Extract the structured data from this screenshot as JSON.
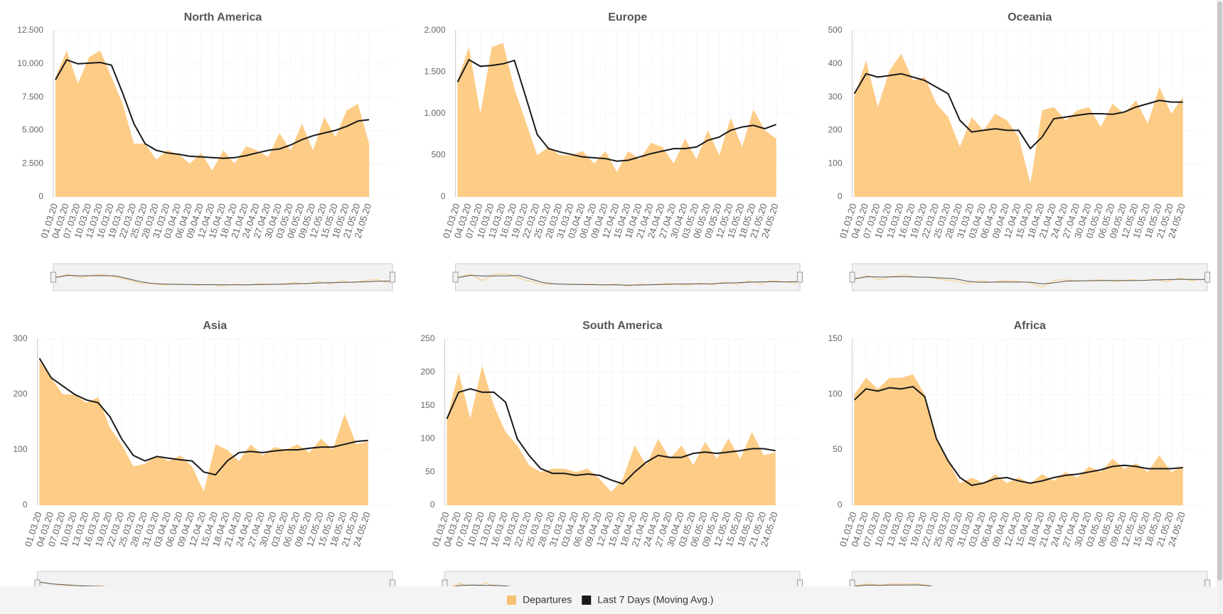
{
  "chart_data": [
    {
      "type": "area-line",
      "title": "North America",
      "categories": [
        "01.03.20",
        "04.03.20",
        "07.03.20",
        "10.03.20",
        "13.03.20",
        "16.03.20",
        "19.03.20",
        "22.03.20",
        "25.03.20",
        "28.03.20",
        "31.03.20",
        "03.04.20",
        "06.04.20",
        "09.04.20",
        "12.04.20",
        "15.04.20",
        "18.04.20",
        "21.04.20",
        "24.04.20",
        "27.04.20",
        "30.04.20",
        "03.05.20",
        "06.05.20",
        "09.05.20",
        "12.05.20",
        "15.05.20",
        "18.05.20",
        "21.05.20",
        "24.05.20"
      ],
      "series": [
        {
          "name": "Departures",
          "color": "#fdc97f",
          "values": [
            9000,
            11000,
            8500,
            10500,
            11000,
            9000,
            7000,
            4000,
            4000,
            2800,
            3500,
            3200,
            2500,
            3300,
            2000,
            3500,
            2500,
            3800,
            3500,
            3000,
            4800,
            3500,
            5500,
            3500,
            6000,
            4500,
            6500,
            7000,
            4000
          ]
        },
        {
          "name": "Last 7 Days (Moving Avg.)",
          "color": "#1a1a1a",
          "values": [
            8800,
            10300,
            10000,
            10050,
            10100,
            9900,
            7800,
            5500,
            4000,
            3500,
            3300,
            3200,
            3050,
            3000,
            2950,
            2900,
            2950,
            3100,
            3300,
            3500,
            3600,
            3900,
            4300,
            4600,
            4800,
            5000,
            5300,
            5700,
            5800
          ]
        }
      ],
      "ylim": [
        0,
        12500
      ],
      "yticks": [
        0,
        {
          "value": 2500,
          "label": "2.500"
        },
        {
          "value": 5000,
          "label": "5.000"
        },
        {
          "value": 7500,
          "label": "7.500"
        },
        {
          "value": 10000,
          "label": "10.000"
        },
        {
          "value": 12500,
          "label": "12.500"
        }
      ],
      "grid": true
    },
    {
      "type": "area-line",
      "title": "Europe",
      "categories": [
        "01.03.20",
        "04.03.20",
        "07.03.20",
        "10.03.20",
        "13.03.20",
        "16.03.20",
        "19.03.20",
        "22.03.20",
        "25.03.20",
        "28.03.20",
        "31.03.20",
        "03.04.20",
        "06.04.20",
        "09.04.20",
        "12.04.20",
        "15.04.20",
        "18.04.20",
        "21.04.20",
        "24.04.20",
        "27.04.20",
        "30.04.20",
        "03.05.20",
        "06.05.20",
        "09.05.20",
        "12.05.20",
        "15.05.20",
        "18.05.20",
        "21.05.20",
        "24.05.20"
      ],
      "series": [
        {
          "name": "Departures",
          "color": "#fdc97f",
          "values": [
            1400,
            1800,
            1000,
            1800,
            1850,
            1300,
            900,
            500,
            600,
            500,
            500,
            550,
            400,
            550,
            300,
            550,
            450,
            650,
            600,
            400,
            700,
            450,
            800,
            500,
            950,
            600,
            1050,
            800,
            700
          ]
        },
        {
          "name": "Last 7 Days (Moving Avg.)",
          "color": "#1a1a1a",
          "values": [
            1380,
            1650,
            1570,
            1580,
            1600,
            1640,
            1200,
            750,
            580,
            540,
            510,
            480,
            470,
            460,
            430,
            440,
            480,
            520,
            550,
            580,
            580,
            600,
            680,
            720,
            800,
            840,
            860,
            820,
            870
          ]
        }
      ],
      "ylim": [
        0,
        2000
      ],
      "yticks": [
        0,
        500,
        {
          "value": 1000,
          "label": "1.000"
        },
        {
          "value": 1500,
          "label": "1.500"
        },
        {
          "value": 2000,
          "label": "2.000"
        }
      ],
      "grid": true
    },
    {
      "type": "area-line",
      "title": "Oceania",
      "categories": [
        "01.03.20",
        "04.03.20",
        "07.03.20",
        "10.03.20",
        "13.03.20",
        "16.03.20",
        "19.03.20",
        "22.03.20",
        "25.03.20",
        "28.03.20",
        "31.03.20",
        "03.04.20",
        "06.04.20",
        "09.04.20",
        "12.04.20",
        "15.04.20",
        "18.04.20",
        "21.04.20",
        "24.04.20",
        "27.04.20",
        "30.04.20",
        "03.05.20",
        "06.05.20",
        "09.05.20",
        "12.05.20",
        "15.05.20",
        "18.05.20",
        "21.05.20",
        "24.05.20"
      ],
      "series": [
        {
          "name": "Departures",
          "color": "#fdc97f",
          "values": [
            300,
            410,
            270,
            380,
            430,
            350,
            360,
            280,
            240,
            150,
            240,
            200,
            250,
            230,
            180,
            40,
            260,
            270,
            230,
            260,
            270,
            210,
            280,
            250,
            290,
            220,
            330,
            250,
            300
          ]
        },
        {
          "name": "Last 7 Days (Moving Avg.)",
          "color": "#1a1a1a",
          "values": [
            310,
            370,
            360,
            365,
            370,
            360,
            350,
            330,
            310,
            230,
            195,
            200,
            205,
            200,
            200,
            145,
            180,
            235,
            240,
            245,
            250,
            250,
            248,
            255,
            270,
            280,
            290,
            285,
            285
          ]
        }
      ],
      "ylim": [
        0,
        500
      ],
      "yticks": [
        0,
        100,
        200,
        300,
        400,
        500
      ],
      "grid": true
    },
    {
      "type": "area-line",
      "title": "Asia",
      "categories": [
        "01.03.20",
        "04.03.20",
        "07.03.20",
        "10.03.20",
        "13.03.20",
        "16.03.20",
        "19.03.20",
        "22.03.20",
        "25.03.20",
        "28.03.20",
        "31.03.20",
        "03.04.20",
        "06.04.20",
        "09.04.20",
        "12.04.20",
        "15.04.20",
        "18.04.20",
        "21.04.20",
        "24.04.20",
        "27.04.20",
        "30.04.20",
        "03.05.20",
        "06.05.20",
        "09.05.20",
        "12.05.20",
        "15.05.20",
        "18.05.20",
        "21.05.20",
        "24.05.20"
      ],
      "series": [
        {
          "name": "Departures",
          "color": "#fdc97f",
          "values": [
            260,
            230,
            200,
            200,
            185,
            195,
            140,
            110,
            70,
            75,
            90,
            80,
            90,
            70,
            25,
            110,
            100,
            80,
            110,
            90,
            105,
            100,
            110,
            95,
            120,
            100,
            165,
            110,
            115
          ]
        },
        {
          "name": "Last 7 Days (Moving Avg.)",
          "color": "#1a1a1a",
          "values": [
            265,
            230,
            215,
            200,
            190,
            185,
            160,
            120,
            90,
            80,
            88,
            85,
            82,
            80,
            60,
            55,
            80,
            95,
            97,
            95,
            98,
            100,
            100,
            103,
            105,
            105,
            110,
            115,
            117
          ]
        }
      ],
      "ylim": [
        0,
        300
      ],
      "yticks": [
        0,
        100,
        200,
        300
      ],
      "grid": true
    },
    {
      "type": "area-line",
      "title": "South America",
      "categories": [
        "01.03.20",
        "04.03.20",
        "07.03.20",
        "10.03.20",
        "13.03.20",
        "16.03.20",
        "19.03.20",
        "22.03.20",
        "25.03.20",
        "28.03.20",
        "31.03.20",
        "03.04.20",
        "06.04.20",
        "09.04.20",
        "12.04.20",
        "15.04.20",
        "18.04.20",
        "21.04.20",
        "24.04.20",
        "27.04.20",
        "30.04.20",
        "03.05.20",
        "06.05.20",
        "09.05.20",
        "12.05.20",
        "15.05.20",
        "18.05.20",
        "21.05.20",
        "24.05.20"
      ],
      "series": [
        {
          "name": "Departures",
          "color": "#fdc97f",
          "values": [
            130,
            200,
            130,
            210,
            150,
            110,
            90,
            60,
            50,
            55,
            55,
            50,
            55,
            40,
            20,
            40,
            90,
            60,
            100,
            70,
            90,
            60,
            95,
            70,
            100,
            70,
            110,
            75,
            80
          ]
        },
        {
          "name": "Last 7 Days (Moving Avg.)",
          "color": "#1a1a1a",
          "values": [
            130,
            170,
            175,
            170,
            170,
            155,
            100,
            75,
            55,
            48,
            48,
            45,
            47,
            45,
            38,
            32,
            50,
            65,
            75,
            72,
            72,
            78,
            80,
            78,
            80,
            82,
            85,
            85,
            82
          ]
        }
      ],
      "ylim": [
        0,
        250
      ],
      "yticks": [
        0,
        50,
        100,
        150,
        200,
        250
      ],
      "grid": true
    },
    {
      "type": "area-line",
      "title": "Africa",
      "categories": [
        "01.03.20",
        "04.03.20",
        "07.03.20",
        "10.03.20",
        "13.03.20",
        "16.03.20",
        "19.03.20",
        "22.03.20",
        "25.03.20",
        "28.03.20",
        "31.03.20",
        "03.04.20",
        "06.04.20",
        "09.04.20",
        "12.04.20",
        "15.04.20",
        "18.04.20",
        "21.04.20",
        "24.04.20",
        "27.04.20",
        "30.04.20",
        "03.05.20",
        "06.05.20",
        "09.05.20",
        "12.05.20",
        "15.05.20",
        "18.05.20",
        "21.05.20",
        "24.05.20"
      ],
      "series": [
        {
          "name": "Departures",
          "color": "#fdc97f",
          "values": [
            100,
            115,
            105,
            115,
            115,
            118,
            100,
            60,
            40,
            20,
            25,
            20,
            28,
            20,
            25,
            20,
            28,
            22,
            30,
            25,
            35,
            30,
            42,
            33,
            38,
            30,
            45,
            30,
            35
          ]
        },
        {
          "name": "Last 7 Days (Moving Avg.)",
          "color": "#1a1a1a",
          "values": [
            95,
            105,
            103,
            106,
            105,
            107,
            98,
            60,
            40,
            25,
            18,
            20,
            24,
            25,
            22,
            20,
            22,
            25,
            27,
            28,
            30,
            32,
            35,
            36,
            35,
            33,
            33,
            33,
            34
          ]
        }
      ],
      "ylim": [
        0,
        150
      ],
      "yticks": [
        0,
        50,
        100,
        150
      ],
      "grid": true
    }
  ]
}
